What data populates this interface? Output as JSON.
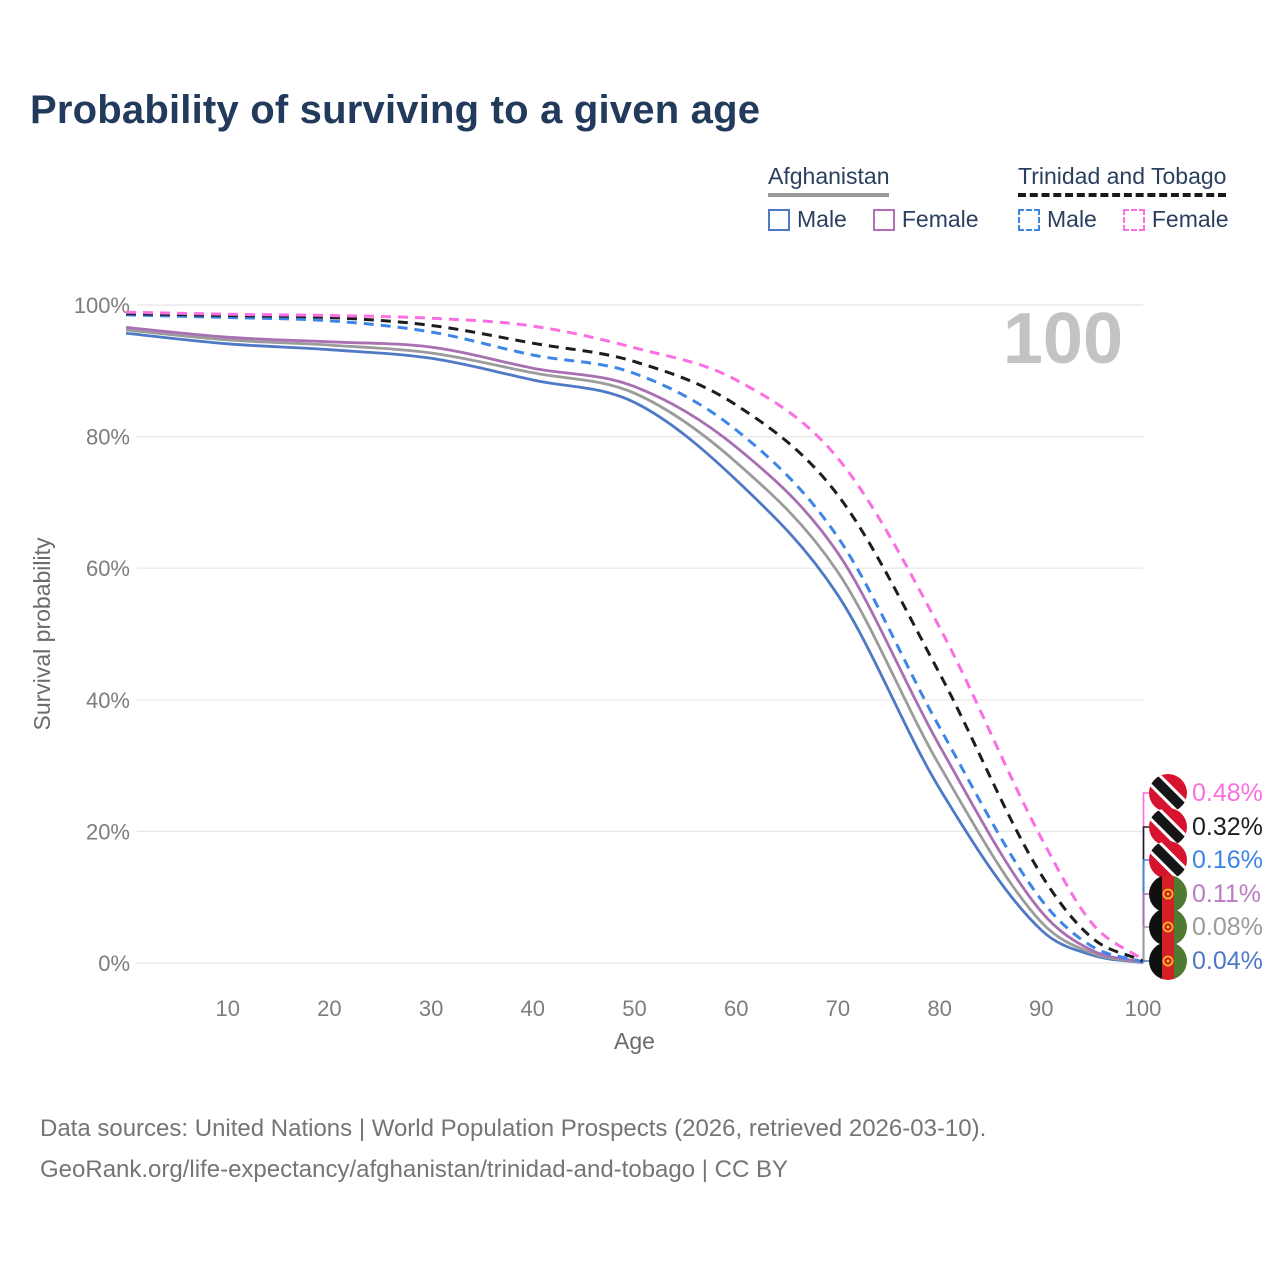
{
  "header": {
    "title": "Probability of surviving to a given age"
  },
  "legend": {
    "groups": [
      {
        "country": "Afghanistan",
        "line_style": "solid",
        "line_color": "#999999",
        "items": [
          {
            "label": "Male",
            "box_style": "solid",
            "color": "#4e79c4"
          },
          {
            "label": "Female",
            "box_style": "solid",
            "color": "#b070b5"
          }
        ]
      },
      {
        "country": "Trinidad and Tobago",
        "line_style": "dashed",
        "line_color": "#1a1a1a",
        "items": [
          {
            "label": "Male",
            "box_style": "dashed",
            "color": "#3d86e8"
          },
          {
            "label": "Female",
            "box_style": "dashed",
            "color": "#fa6fe2"
          }
        ]
      }
    ]
  },
  "watermark": "100",
  "chart_data": {
    "type": "line",
    "title": "Probability of surviving to a given age",
    "xlabel": "Age",
    "ylabel": "Survival probability",
    "xlim": [
      0,
      100
    ],
    "ylim": [
      0,
      100
    ],
    "grid": "horizontal-only",
    "legend_position": "top-right",
    "x_ticks": [
      "10",
      "20",
      "30",
      "40",
      "50",
      "60",
      "70",
      "80",
      "90",
      "100"
    ],
    "x_tick_values": [
      10,
      20,
      30,
      40,
      50,
      60,
      70,
      80,
      90,
      100
    ],
    "y_ticks": [
      {
        "value": 0,
        "label": "0%"
      },
      {
        "value": 20,
        "label": "20%"
      },
      {
        "value": 40,
        "label": "40%"
      },
      {
        "value": 60,
        "label": "60%"
      },
      {
        "value": 80,
        "label": "80%"
      },
      {
        "value": 100,
        "label": "100%"
      }
    ],
    "x": [
      0,
      10,
      20,
      30,
      40,
      50,
      60,
      70,
      80,
      90,
      95,
      100
    ],
    "series": [
      {
        "name": "Trinidad and Tobago — Female",
        "country": "Trinidad and Tobago",
        "sex": "Female",
        "color": "#fa6fe2",
        "label_color": "#fa6fe2",
        "dashed": true,
        "flag": "tt",
        "end_label": "0.48%",
        "values": [
          98.9,
          98.6,
          98.4,
          98.0,
          96.8,
          93.5,
          88.6,
          76.7,
          51.0,
          19.0,
          6.0,
          0.48
        ]
      },
      {
        "name": "Trinidad and Tobago — Both sexes",
        "country": "Trinidad and Tobago",
        "sex": "Both",
        "color": "#1d1d1d",
        "label_color": "#1d1d1d",
        "dashed": true,
        "flag": "tt",
        "end_label": "0.32%",
        "values": [
          98.7,
          98.4,
          98.1,
          96.9,
          94.2,
          91.4,
          84.8,
          71.1,
          44.0,
          13.4,
          3.8,
          0.32
        ]
      },
      {
        "name": "Trinidad and Tobago — Male",
        "country": "Trinidad and Tobago",
        "sex": "Male",
        "color": "#3d86e8",
        "label_color": "#3d86e8",
        "dashed": true,
        "flag": "tt",
        "end_label": "0.16%",
        "values": [
          98.5,
          98.1,
          97.6,
          95.9,
          92.4,
          89.6,
          81.0,
          64.7,
          35.8,
          9.6,
          2.5,
          0.16
        ]
      },
      {
        "name": "Afghanistan — Female",
        "country": "Afghanistan",
        "sex": "Female",
        "color": "#a86fb2",
        "label_color": "#bb7cc4",
        "dashed": false,
        "flag": "af",
        "end_label": "0.11%",
        "values": [
          96.6,
          95.1,
          94.4,
          93.6,
          90.4,
          87.6,
          78.4,
          62.3,
          33.0,
          7.8,
          1.9,
          0.11
        ]
      },
      {
        "name": "Afghanistan — Both sexes",
        "country": "Afghanistan",
        "sex": "Both",
        "color": "#9b9b9b",
        "label_color": "#9b9b9b",
        "dashed": false,
        "flag": "af",
        "end_label": "0.08%",
        "values": [
          96.2,
          94.7,
          93.9,
          92.7,
          89.7,
          86.6,
          76.1,
          59.4,
          30.0,
          6.2,
          1.5,
          0.08
        ]
      },
      {
        "name": "Afghanistan — Male",
        "country": "Afghanistan",
        "sex": "Male",
        "color": "#4e79c4",
        "label_color": "#4e79c4",
        "dashed": false,
        "flag": "af",
        "end_label": "0.04%",
        "values": [
          95.7,
          94.1,
          93.2,
          91.9,
          88.6,
          85.2,
          73.4,
          55.9,
          26.5,
          5.0,
          1.2,
          0.04
        ]
      }
    ]
  },
  "colors": {
    "title": "#223a5c",
    "axis_text": "#7d7d7d",
    "axis_title": "#6b6b6b",
    "gridline": "#e7e7e7",
    "watermark": "#c3c3c3",
    "footer_text": "#757575",
    "tt_flag_red": "#d8132f",
    "af_flag_red": "#d31f25",
    "af_flag_green": "#4e7b31",
    "flag_gold": "#f2c41f"
  },
  "footer": {
    "line1": "Data sources: United Nations | World Population Prospects (2026, retrieved 2026-03-10).",
    "line2": "GeoRank.org/life-expectancy/afghanistan/trinidad-and-tobago | CC BY"
  }
}
